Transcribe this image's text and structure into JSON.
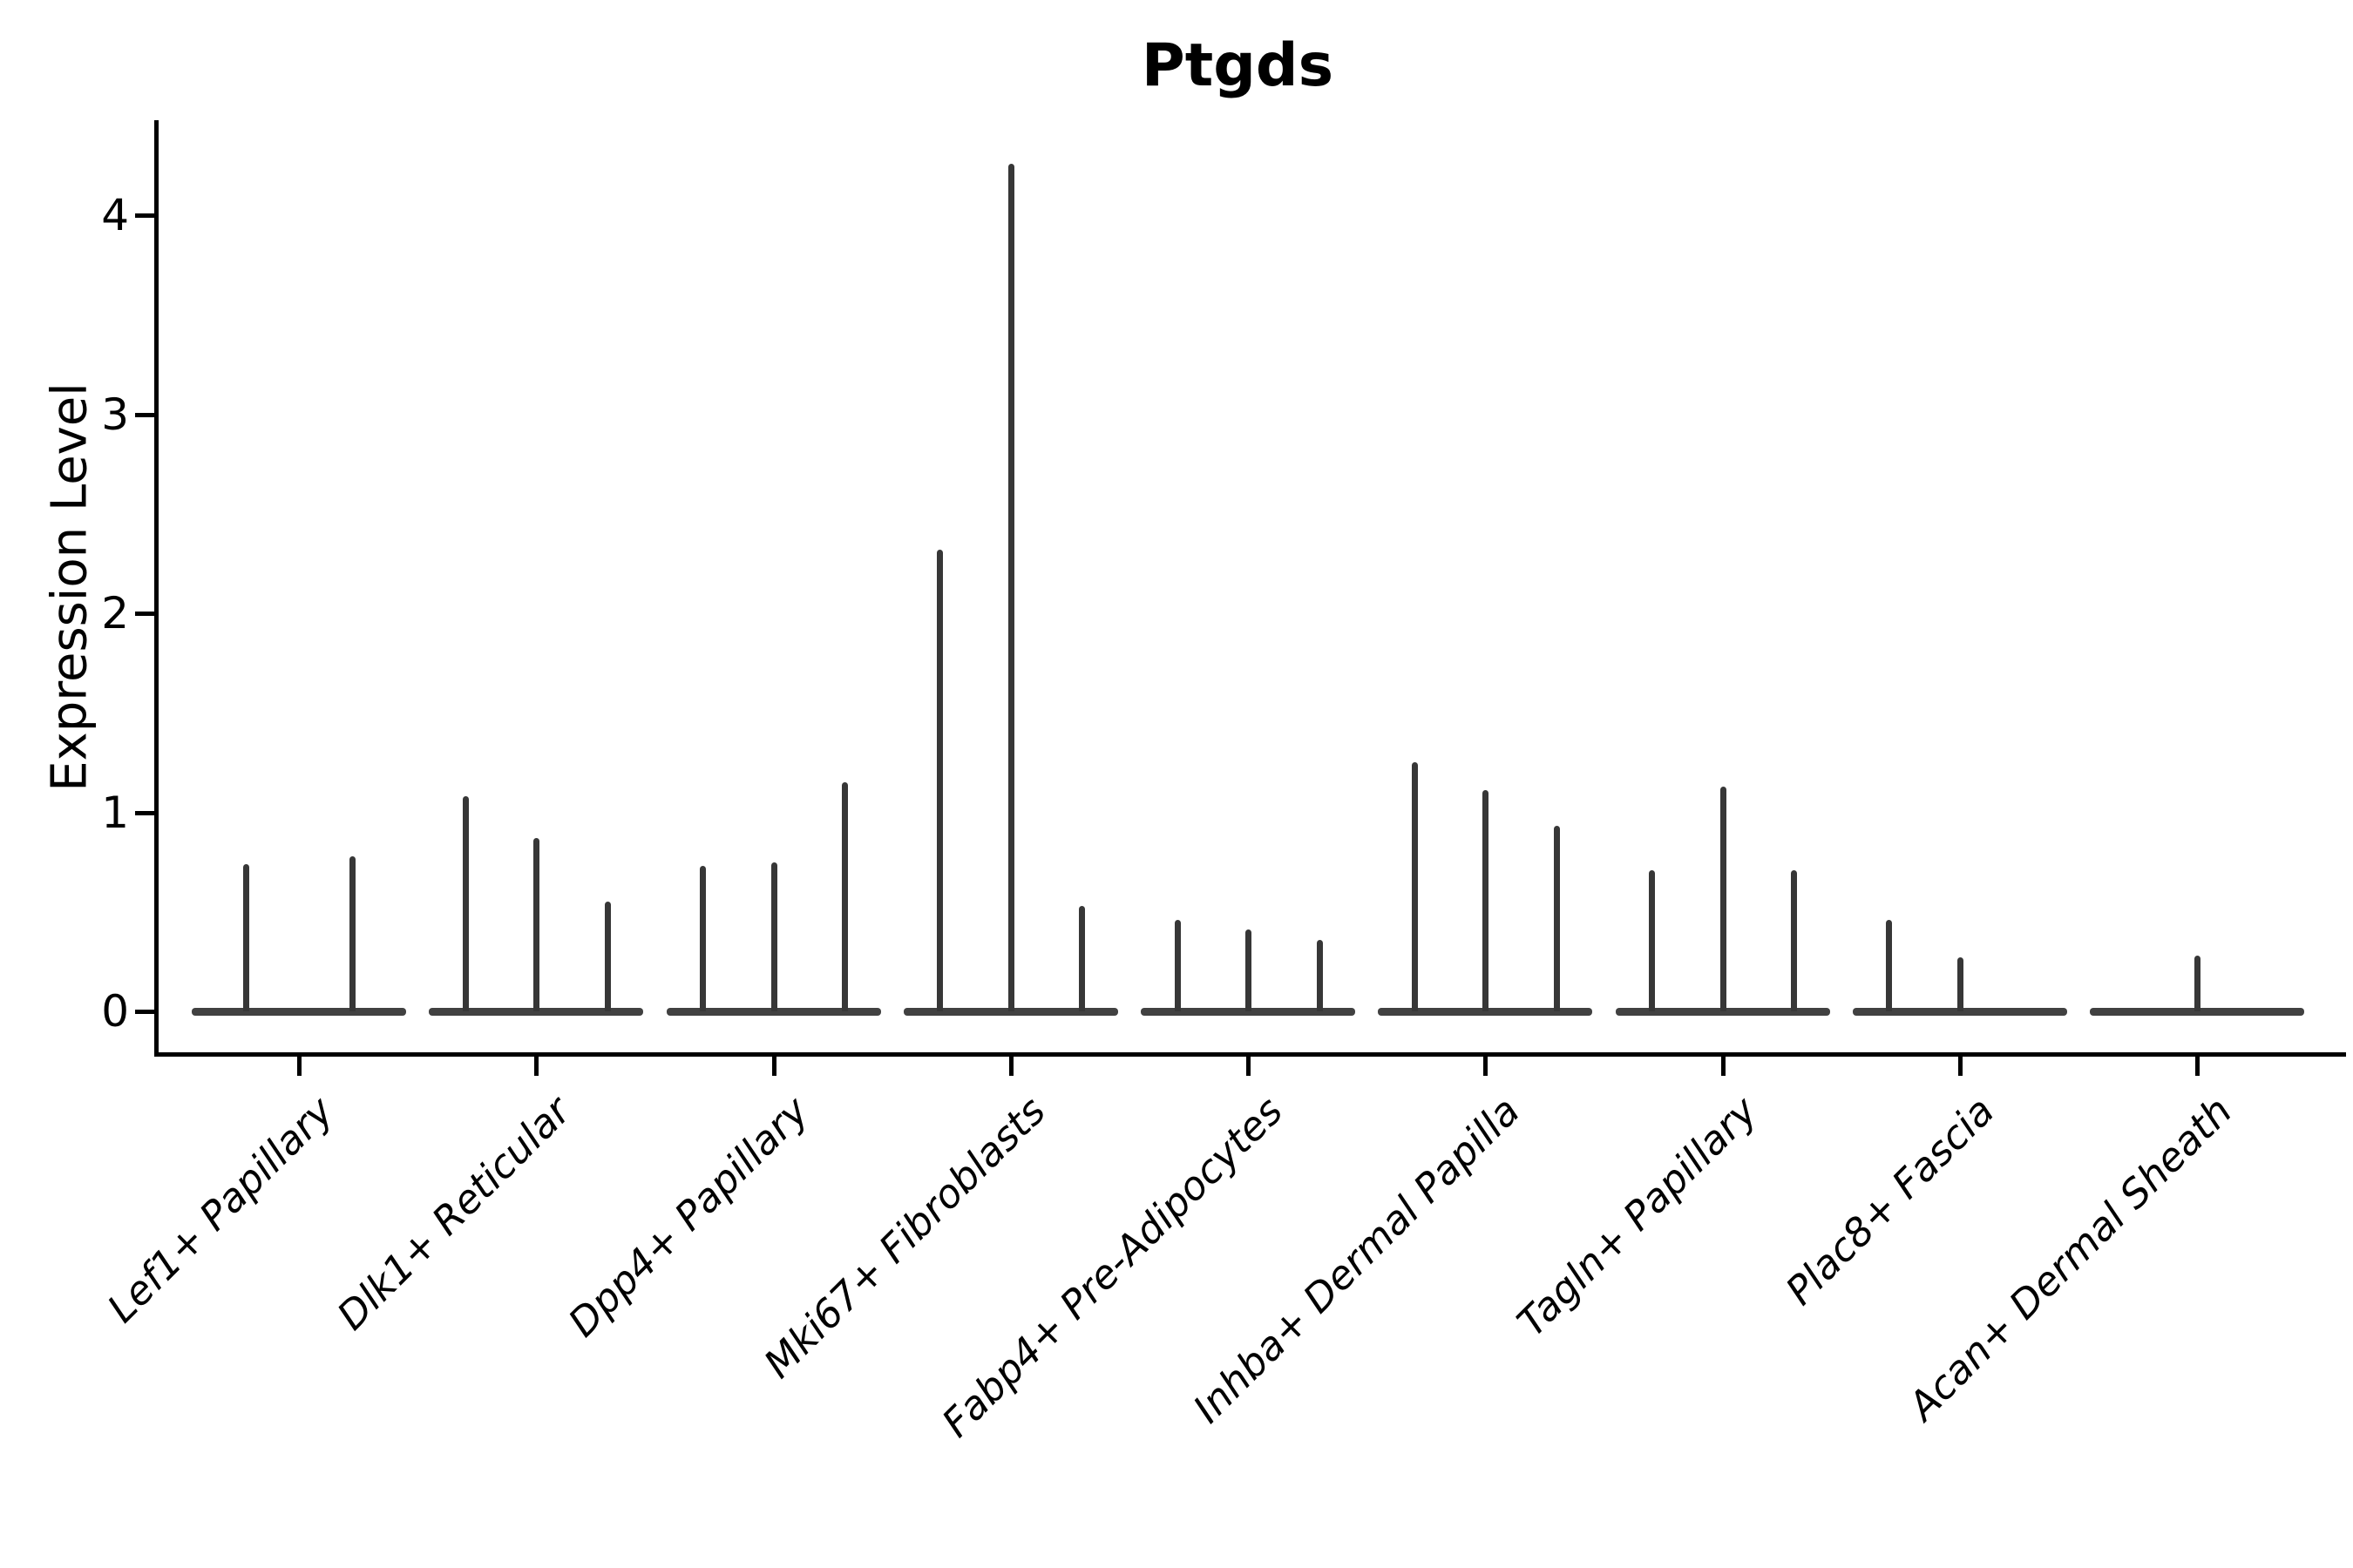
{
  "chart_data": {
    "type": "violin",
    "title": "Ptgds",
    "ylabel": "Expression Level",
    "xlabel": "",
    "ylim": [
      0,
      4.48
    ],
    "yticks": [
      0,
      1,
      2,
      3,
      4
    ],
    "grid": false,
    "legend": null,
    "categories": [
      "Lef1+ Papillary",
      "Dlk1+ Reticular",
      "Dpp4+ Papillary",
      "Mki67+ Fibroblasts",
      "Fabp4+ Pre-Adipocytes",
      "Inhba+ Dermal Papilla",
      "Tagln+ Papillary",
      "Plac8+ Fascia",
      "Acan+ Dermal Sheath"
    ],
    "groups": [
      {
        "label": "Lef1+ Papillary",
        "violins": [
          {
            "offset": -61,
            "max": 0.74
          },
          {
            "offset": 61,
            "max": 0.78
          }
        ]
      },
      {
        "label": "Dlk1+ Reticular",
        "violins": [
          {
            "offset": -81.5,
            "max": 1.08
          },
          {
            "offset": 0,
            "max": 0.87
          },
          {
            "offset": 81.5,
            "max": 0.55
          }
        ]
      },
      {
        "label": "Dpp4+ Papillary",
        "violins": [
          {
            "offset": -81.5,
            "max": 0.73
          },
          {
            "offset": 0,
            "max": 0.75
          },
          {
            "offset": 81.5,
            "max": 1.15
          }
        ]
      },
      {
        "label": "Mki67+ Fibroblasts",
        "violins": [
          {
            "offset": -81.5,
            "max": 2.32
          },
          {
            "offset": 0,
            "max": 4.26
          },
          {
            "offset": 81.5,
            "max": 0.53
          }
        ]
      },
      {
        "label": "Fabp4+ Pre-Adipocytes",
        "violins": [
          {
            "offset": -81.5,
            "max": 0.46
          },
          {
            "offset": 0,
            "max": 0.41
          },
          {
            "offset": 81.5,
            "max": 0.36
          }
        ]
      },
      {
        "label": "Inhba+ Dermal Papilla",
        "violins": [
          {
            "offset": -81.5,
            "max": 1.25
          },
          {
            "offset": 0,
            "max": 1.11
          },
          {
            "offset": 81.5,
            "max": 0.93
          }
        ]
      },
      {
        "label": "Tagln+ Papillary",
        "violins": [
          {
            "offset": -81.5,
            "max": 0.71
          },
          {
            "offset": 0,
            "max": 1.13
          },
          {
            "offset": 81.5,
            "max": 0.71
          }
        ]
      },
      {
        "label": "Plac8+ Fascia",
        "violins": [
          {
            "offset": -81.5,
            "max": 0.46
          },
          {
            "offset": 0,
            "max": 0.27
          }
        ]
      },
      {
        "label": "Acan+ Dermal Sheath",
        "violins": [
          {
            "offset": 0,
            "max": 0.28
          }
        ]
      }
    ],
    "colors": {
      "spike": "#373737",
      "baseline": "#414141",
      "axis": "#000000"
    }
  }
}
